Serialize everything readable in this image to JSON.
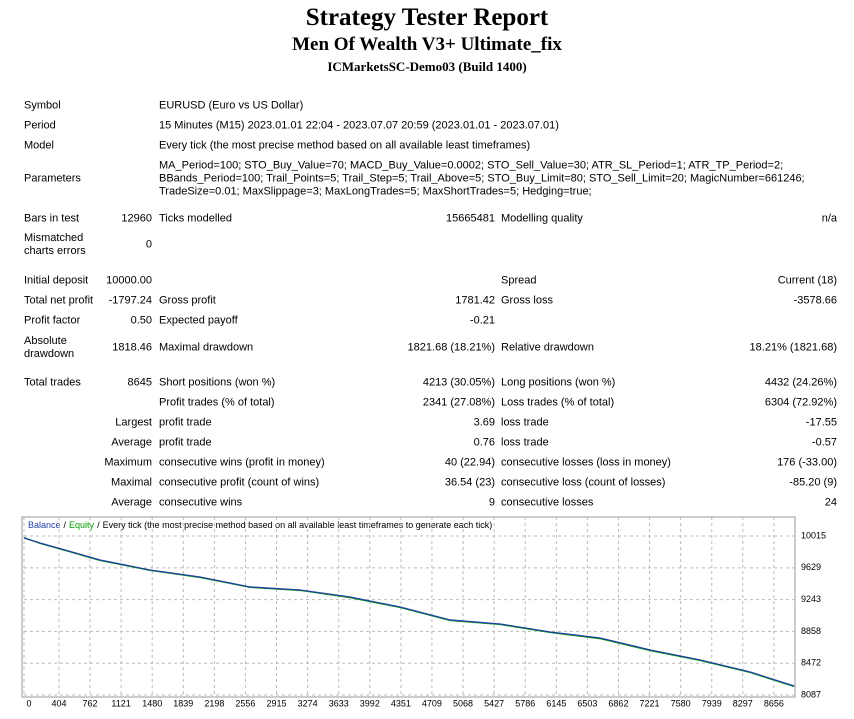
{
  "header": {
    "title": "Strategy Tester Report",
    "subtitle": "Men Of Wealth V3+ Ultimate_fix",
    "server": "ICMarketsSC-Demo03 (Build 1400)"
  },
  "info": [
    {
      "label": "Symbol",
      "value": [
        "EURUSD (Euro vs US Dollar)"
      ]
    },
    {
      "label": "Period",
      "value": [
        "15 Minutes (M15) 2023.01.01 22:04 - 2023.07.07 20:59 (2023.01.01 - 2023.07.01)"
      ]
    },
    {
      "label": "Model",
      "value": [
        "Every tick (the most precise method based on all available least timeframes)"
      ]
    },
    {
      "label": "Parameters",
      "value": [
        "MA_Period=100; STO_Buy_Value=70; MACD_Buy_Value=0.0002; STO_Sell_Value=30; ATR_SL_Period=1; ATR_TP_Period=2;",
        "BBands_Period=100; Trail_Points=5; Trail_Step=5; Trail_Above=5; STO_Buy_Limit=80; STO_Sell_Limit=20; MagicNumber=661246;",
        "TradeSize=0.01; MaxSlippage=3; MaxLongTrades=5; MaxShortTrades=5; Hedging=true;"
      ]
    }
  ],
  "table": {
    "rows": [
      [
        "Bars in test",
        "12960",
        "Ticks modelled",
        "15665481",
        "Modelling quality",
        "n/a"
      ],
      [
        "Mismatched charts errors",
        "0",
        null,
        null,
        null,
        null
      ],
      [
        "Initial deposit",
        "10000.00",
        null,
        null,
        "Spread",
        "Current (18)"
      ],
      [
        "Total net profit",
        "-1797.24",
        "Gross profit",
        "1781.42",
        "Gross loss",
        "-3578.66"
      ],
      [
        "Profit factor",
        "0.50",
        "Expected payoff",
        "-0.21",
        null,
        null
      ],
      [
        "Absolute drawdown",
        "1818.46",
        "Maximal drawdown",
        "1821.68 (18.21%)",
        "Relative drawdown",
        "18.21% (1821.68)"
      ],
      [
        "Total trades",
        "8645",
        "Short positions (won %)",
        "4213 (30.05%)",
        "Long positions (won %)",
        "4432 (24.26%)"
      ],
      [
        null,
        null,
        "Profit trades (% of total)",
        "2341 (27.08%)",
        "Loss trades (% of total)",
        "6304 (72.92%)"
      ],
      [
        null,
        "Largest",
        "profit trade",
        "3.69",
        "loss trade",
        "-17.55"
      ],
      [
        null,
        "Average",
        "profit trade",
        "0.76",
        "loss trade",
        "-0.57"
      ],
      [
        null,
        "Maximum",
        "consecutive wins (profit in money)",
        "40 (22.94)",
        "consecutive losses (loss in money)",
        "176 (-33.00)"
      ],
      [
        null,
        "Maximal",
        "consecutive profit (count of wins)",
        "36.54 (23)",
        "consecutive loss (count of losses)",
        "-85.20 (9)"
      ],
      [
        null,
        "Average",
        "consecutive wins",
        "9",
        "consecutive losses",
        "24"
      ]
    ]
  },
  "chart_data": {
    "type": "line",
    "title": "Every tick (the most precise method based on all available least timeframes to generate each tick)",
    "separator": "/",
    "x": [
      0,
      185,
      473,
      878,
      1455,
      2032,
      2610,
      3187,
      3764,
      4342,
      4919,
      5497,
      6074,
      6651,
      7229,
      7806,
      8383,
      8890
    ],
    "series": [
      {
        "name": "Equity",
        "color": "#00a000",
        "values": [
          9995,
          9925,
          9840,
          9718,
          9598,
          9512,
          9392,
          9355,
          9268,
          9148,
          8990,
          8942,
          8845,
          8770,
          8626,
          8505,
          8360,
          8190
        ]
      },
      {
        "name": "Balance",
        "color": "#1f3fa0",
        "values": [
          9991,
          9930,
          9845,
          9724,
          9603,
          9518,
          9397,
          9360,
          9275,
          9154,
          8997,
          8948,
          8851,
          8778,
          8633,
          8512,
          8366,
          8197
        ]
      }
    ],
    "xlim": [
      0,
      8900
    ],
    "xticks": [
      0,
      404,
      762,
      1121,
      1480,
      1839,
      2198,
      2556,
      2915,
      3274,
      3633,
      3992,
      4351,
      4709,
      5068,
      5427,
      5786,
      6145,
      6503,
      6862,
      7221,
      7580,
      7939,
      8297,
      8656
    ],
    "ylim": [
      8063,
      10245
    ],
    "yticks": [
      8087,
      8472,
      8858,
      9243,
      9629,
      10015
    ],
    "grid": true
  }
}
